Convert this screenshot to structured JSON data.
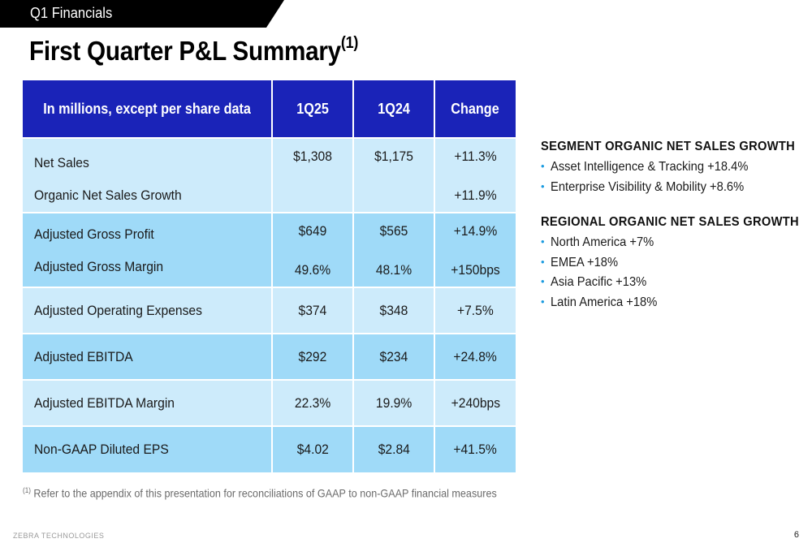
{
  "header": {
    "section_label": "Q1 Financials",
    "title": "First Quarter P&L Summary",
    "title_superscript": "(1)"
  },
  "table": {
    "columns": [
      "In millions, except per share data",
      "1Q25",
      "1Q24",
      "Change"
    ],
    "rows": [
      {
        "label": "Net Sales",
        "q125": "$1,308",
        "q124": "$1,175",
        "change": "+11.3%"
      },
      {
        "label": "Organic Net Sales Growth",
        "q125": "",
        "q124": "",
        "change": "+11.9%"
      },
      {
        "label": "Adjusted Gross Profit",
        "q125": "$649",
        "q124": "$565",
        "change": "+14.9%"
      },
      {
        "label": "Adjusted Gross Margin",
        "q125": "49.6%",
        "q124": "48.1%",
        "change": "+150bps"
      },
      {
        "label": "Adjusted Operating Expenses",
        "q125": "$374",
        "q124": "$348",
        "change": "+7.5%"
      },
      {
        "label": "Adjusted EBITDA",
        "q125": "$292",
        "q124": "$234",
        "change": "+24.8%"
      },
      {
        "label": "Adjusted EBITDA Margin",
        "q125": "22.3%",
        "q124": "19.9%",
        "change": "+240bps"
      },
      {
        "label": "Non-GAAP Diluted EPS",
        "q125": "$4.02",
        "q124": "$2.84",
        "change": "+41.5%"
      }
    ]
  },
  "footnote": {
    "marker": "(1)",
    "text": "Refer to the appendix of this presentation for reconciliations of GAAP to non-GAAP financial measures"
  },
  "segment_growth": {
    "heading": "SEGMENT ORGANIC NET SALES GROWTH",
    "items": [
      "Asset Intelligence & Tracking +18.4%",
      "Enterprise Visibility & Mobility +8.6%"
    ]
  },
  "regional_growth": {
    "heading": "REGIONAL ORGANIC NET SALES GROWTH",
    "items": [
      "North America +7%",
      "EMEA +18%",
      "Asia Pacific +13%",
      "Latin America +18%"
    ]
  },
  "footer": {
    "brand": "ZEBRA TECHNOLOGIES",
    "page_number": "6"
  },
  "colors": {
    "header_blue": "#1a23b8",
    "row_light": "#cdebfb",
    "row_dark": "#9fdaf8",
    "bullet_blue": "#1a9be0"
  }
}
